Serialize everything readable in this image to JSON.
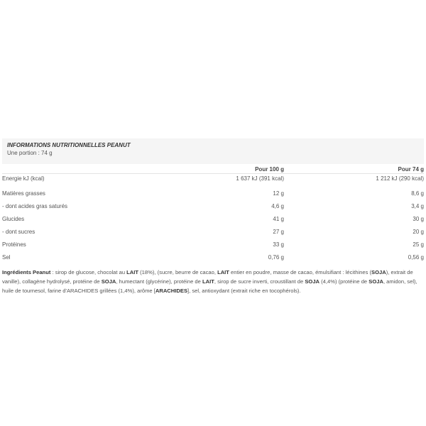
{
  "header": {
    "title": "INFORMATIONS NUTRITIONNELLES PEANUT",
    "portion": "Une portion : 74 g"
  },
  "table": {
    "columns": [
      "",
      "Pour 100 g",
      "Pour 74 g"
    ],
    "rows": [
      {
        "label": "Energie kJ (kcal)",
        "per100": "1 637 kJ (391 kcal)",
        "perPortion": "1 212 kJ (290 kcal)"
      },
      {
        "label": "Matières grasses",
        "per100": "12 g",
        "perPortion": "8,6 g"
      },
      {
        "label": "- dont acides gras saturés",
        "per100": "4,6 g",
        "perPortion": "3,4 g"
      },
      {
        "label": "Glucides",
        "per100": "41 g",
        "perPortion": "30 g"
      },
      {
        "label": "- dont sucres",
        "per100": "27 g",
        "perPortion": "20 g"
      },
      {
        "label": "Protéines",
        "per100": "33 g",
        "perPortion": "25 g"
      },
      {
        "label": "Sel",
        "per100": "0,76 g",
        "perPortion": "0,56 g"
      }
    ]
  },
  "ingredients": [
    {
      "t": "Ingrédients Peanut",
      "b": true
    },
    {
      "t": " : sirop de glucose, chocolat au "
    },
    {
      "t": "LAIT",
      "b": true
    },
    {
      "t": " (18%), (sucre, beurre de cacao, "
    },
    {
      "t": "LAIT",
      "b": true
    },
    {
      "t": " entier en poudre, masse de cacao, émulsifiant : lécithines ("
    },
    {
      "t": "SOJA",
      "b": true
    },
    {
      "t": "), extrait de vanille), collagène hydrolysé, protéine de "
    },
    {
      "t": "SOJA",
      "b": true
    },
    {
      "t": ", humectant (glycérine), protéine de "
    },
    {
      "t": "LAIT",
      "b": true
    },
    {
      "t": ", sirop de sucre inverti, croustillant de "
    },
    {
      "t": "SOJA",
      "b": true
    },
    {
      "t": " (4,4%) (protéine de "
    },
    {
      "t": "SOJA",
      "b": true
    },
    {
      "t": ", amidon, sel), huile de tournesol, farine d'ARACHIDES grillées (1,4%), arôme ["
    },
    {
      "t": "ARACHIDES",
      "b": true
    },
    {
      "t": "], sel, antioxydant (extrait riche en tocophérols)."
    }
  ]
}
